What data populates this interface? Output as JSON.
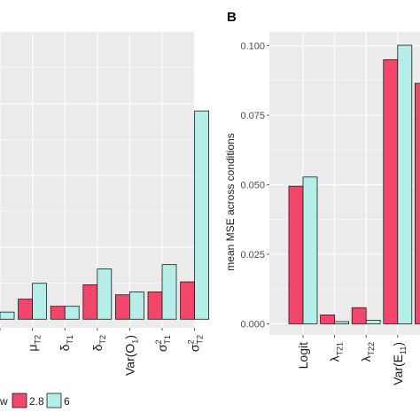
{
  "colors": {
    "panel_bg": "#ebebeb",
    "grid": "#ffffff",
    "bar_outline": "#1a1a1a",
    "series_a": "#f2476a",
    "series_b": "#b5ede9"
  },
  "chart_data": [
    {
      "type": "bar",
      "panel_label": "",
      "ylabel": "",
      "categories": [
        "",
        "μT2",
        "δT1",
        "δT2",
        "Var(O1)",
        "σ2T1",
        "σ2T2"
      ],
      "series": [
        {
          "name": "2.8",
          "values": [
            0.0,
            0.014,
            0.009,
            0.024,
            0.017,
            0.019,
            0.026
          ]
        },
        {
          "name": "6",
          "values": [
            0.005,
            0.025,
            0.009,
            0.035,
            0.019,
            0.038,
            0.145
          ]
        }
      ],
      "ylim": [
        -0.006,
        0.2
      ],
      "grid": true
    },
    {
      "type": "bar",
      "panel_label": "B",
      "ylabel": "mean MSE across conditions",
      "categories": [
        "Logit",
        "λT21",
        "λT22",
        "Var(E11)",
        ""
      ],
      "series": [
        {
          "name": "2.8",
          "values": [
            0.0495,
            0.0032,
            0.0058,
            0.095,
            0.0865
          ]
        },
        {
          "name": "6",
          "values": [
            0.0528,
            0.0008,
            0.0013,
            0.1002,
            null
          ]
        }
      ],
      "yticks": [
        "0.000",
        "0.025",
        "0.050",
        "0.075",
        "0.100"
      ],
      "ylim": [
        -0.004,
        0.105
      ],
      "grid": true
    }
  ],
  "legend": {
    "title_fragment": "w",
    "items": [
      {
        "label": "2.8",
        "color": "#f2476a"
      },
      {
        "label": "6",
        "color": "#b5ede9"
      }
    ],
    "placement": "bottom"
  }
}
